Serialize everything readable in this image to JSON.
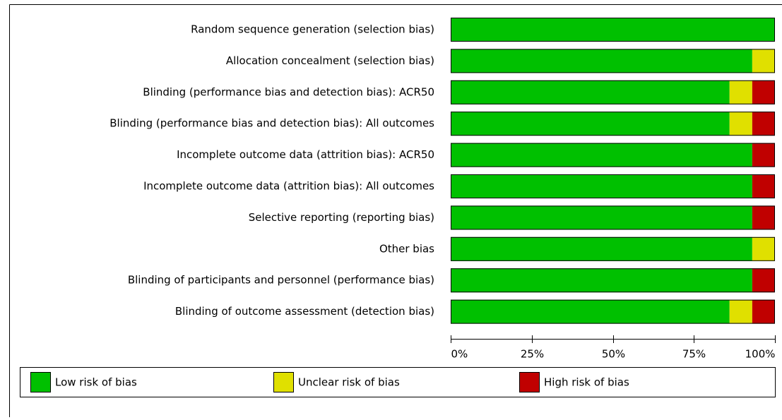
{
  "chart_data": {
    "type": "stacked-bar-horizontal",
    "categories": [
      "Random sequence generation (selection bias)",
      "Allocation concealment (selection bias)",
      "Blinding (performance bias and detection bias): ACR50",
      "Blinding (performance bias and detection bias): All outcomes",
      "Incomplete outcome data (attrition bias): ACR50",
      "Incomplete outcome data (attrition bias): All outcomes",
      "Selective reporting (reporting bias)",
      "Other bias",
      "Blinding of participants and personnel (performance bias)",
      "Blinding of outcome assessment (detection bias)"
    ],
    "series": [
      {
        "name": "Low risk of bias",
        "color": "#00c000",
        "values": [
          100,
          93,
          86,
          86,
          93,
          93,
          93,
          93,
          93,
          86
        ]
      },
      {
        "name": "Unclear risk of bias",
        "color": "#e0e000",
        "values": [
          0,
          7,
          7,
          7,
          0,
          0,
          0,
          7,
          0,
          7
        ]
      },
      {
        "name": "High risk of bias",
        "color": "#c00000",
        "values": [
          0,
          0,
          7,
          7,
          7,
          7,
          7,
          0,
          7,
          7
        ]
      }
    ],
    "xlim": [
      0,
      100
    ],
    "xticks": [
      {
        "value": 0,
        "label": "0%"
      },
      {
        "value": 25,
        "label": "25%"
      },
      {
        "value": 50,
        "label": "50%"
      },
      {
        "value": 75,
        "label": "75%"
      },
      {
        "value": 100,
        "label": "100%"
      }
    ]
  }
}
